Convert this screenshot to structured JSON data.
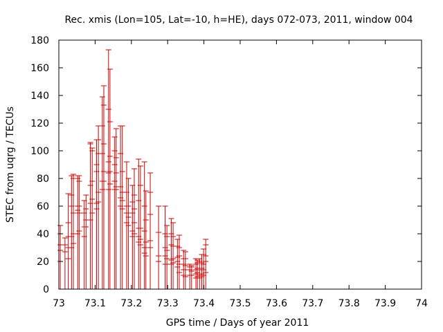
{
  "chart_data": {
    "type": "line",
    "title": "Rec. xmis (Lon=105, Lat=-10, h=HE), days 072-073, 2011, window 004",
    "xlabel": "GPS time / Days of year 2011",
    "ylabel": "STEC from uqrg / TECUs",
    "xlim": [
      73,
      74
    ],
    "ylim": [
      0,
      180
    ],
    "xticks": [
      "73",
      "73.1",
      "73.2",
      "73.3",
      "73.4",
      "73.5",
      "73.6",
      "73.7",
      "73.8",
      "73.9",
      "74"
    ],
    "yticks": [
      "0",
      "20",
      "40",
      "60",
      "80",
      "100",
      "120",
      "140",
      "160",
      "180"
    ],
    "grid": false,
    "colors": {
      "series": "#cc0000",
      "axes": "#000000"
    },
    "series": [
      {
        "style": "vertical-lines-with-ticks",
        "points": [
          {
            "x": 73.004,
            "y": 46,
            "ticks": [
              20,
              28,
              32,
              40,
              46
            ]
          },
          {
            "x": 73.017,
            "y": 37,
            "ticks": [
              27,
              32,
              37
            ]
          },
          {
            "x": 73.026,
            "y": 69,
            "ticks": [
              22,
              30,
              38,
              48,
              69
            ]
          },
          {
            "x": 73.035,
            "y": 82,
            "ticks": [
              30,
              38,
              60,
              68,
              82
            ]
          },
          {
            "x": 73.04,
            "y": 83,
            "ticks": [
              33,
              40,
              55,
              80,
              83
            ]
          },
          {
            "x": 73.052,
            "y": 82,
            "ticks": [
              40,
              57,
              60,
              80,
              82
            ]
          },
          {
            "x": 73.056,
            "y": 82,
            "ticks": [
              42,
              55,
              60,
              78,
              82
            ]
          },
          {
            "x": 73.07,
            "y": 64,
            "ticks": [
              38,
              45,
              55,
              64
            ]
          },
          {
            "x": 73.075,
            "y": 68,
            "ticks": [
              45,
              50,
              58,
              68
            ]
          },
          {
            "x": 73.087,
            "y": 106,
            "ticks": [
              50,
              62,
              75,
              105,
              106
            ]
          },
          {
            "x": 73.092,
            "y": 102,
            "ticks": [
              55,
              65,
              78,
              100,
              102
            ]
          },
          {
            "x": 73.104,
            "y": 108,
            "ticks": [
              58,
              62,
              85,
              90,
              108
            ]
          },
          {
            "x": 73.109,
            "y": 118,
            "ticks": [
              63,
              70,
              98,
              108,
              118
            ]
          },
          {
            "x": 73.12,
            "y": 139,
            "ticks": [
              72,
              78,
              98,
              118,
              139
            ]
          },
          {
            "x": 73.124,
            "y": 147,
            "ticks": [
              78,
              85,
              105,
              133,
              147
            ]
          },
          {
            "x": 73.137,
            "y": 173,
            "ticks": [
              72,
              84,
              92,
              130,
              173
            ]
          },
          {
            "x": 73.141,
            "y": 159,
            "ticks": [
              76,
              85,
              96,
              121,
              159
            ]
          },
          {
            "x": 73.154,
            "y": 110,
            "ticks": [
              72,
              78,
              90,
              100,
              110
            ]
          },
          {
            "x": 73.158,
            "y": 116,
            "ticks": [
              72,
              74,
              84,
              95,
              116
            ]
          },
          {
            "x": 73.17,
            "y": 118,
            "ticks": [
              60,
              66,
              74,
              98,
              118
            ]
          },
          {
            "x": 73.175,
            "y": 118,
            "ticks": [
              58,
              64,
              70,
              85,
              118
            ]
          },
          {
            "x": 73.187,
            "y": 92,
            "ticks": [
              48,
              55,
              60,
              70,
              92
            ]
          },
          {
            "x": 73.192,
            "y": 80,
            "ticks": [
              46,
              52,
              60,
              80
            ]
          },
          {
            "x": 73.203,
            "y": 75,
            "ticks": [
              38,
              42,
              55,
              63,
              75
            ]
          },
          {
            "x": 73.208,
            "y": 87,
            "ticks": [
              40,
              48,
              58,
              68,
              87
            ]
          },
          {
            "x": 73.22,
            "y": 94,
            "ticks": [
              34,
              38,
              44,
              64,
              94
            ]
          },
          {
            "x": 73.225,
            "y": 89,
            "ticks": [
              32,
              36,
              44,
              75,
              89
            ]
          },
          {
            "x": 73.236,
            "y": 92,
            "ticks": [
              26,
              30,
              42,
              60,
              92
            ]
          },
          {
            "x": 73.24,
            "y": 71,
            "ticks": [
              24,
              34,
              50,
              71
            ]
          },
          {
            "x": 73.252,
            "y": 84,
            "ticks": [
              30,
              35,
              54,
              70,
              84
            ]
          },
          {
            "x": 73.275,
            "y": 60,
            "ticks": [
              20,
              24,
              41,
              60
            ]
          },
          {
            "x": 73.293,
            "y": 60,
            "ticks": [
              18,
              24,
              30,
              40,
              60
            ]
          },
          {
            "x": 73.298,
            "y": 46,
            "ticks": [
              18,
              22,
              28,
              38,
              46
            ]
          },
          {
            "x": 73.31,
            "y": 51,
            "ticks": [
              18,
              21,
              32,
              40,
              51
            ]
          },
          {
            "x": 73.315,
            "y": 48,
            "ticks": [
              19,
              22,
              31,
              38,
              48
            ]
          },
          {
            "x": 73.327,
            "y": 36,
            "ticks": [
              16,
              20,
              23,
              31,
              36
            ]
          },
          {
            "x": 73.332,
            "y": 39,
            "ticks": [
              12,
              18,
              24,
              30,
              39
            ]
          },
          {
            "x": 73.344,
            "y": 28,
            "ticks": [
              10,
              14,
              18,
              22,
              28
            ]
          },
          {
            "x": 73.349,
            "y": 27,
            "ticks": [
              9,
              14,
              17,
              22,
              27
            ]
          },
          {
            "x": 73.361,
            "y": 18,
            "ticks": [
              10,
              14,
              16,
              18
            ]
          },
          {
            "x": 73.366,
            "y": 17,
            "ticks": [
              10,
              13,
              16,
              17
            ]
          },
          {
            "x": 73.378,
            "y": 22,
            "ticks": [
              8,
              11,
              14,
              18,
              22
            ]
          },
          {
            "x": 73.382,
            "y": 21,
            "ticks": [
              9,
              12,
              15,
              19,
              21
            ]
          },
          {
            "x": 73.388,
            "y": 22,
            "ticks": [
              8,
              10,
              14,
              20,
              22
            ]
          },
          {
            "x": 73.394,
            "y": 25,
            "ticks": [
              9,
              11,
              15,
              19,
              25
            ]
          },
          {
            "x": 73.399,
            "y": 29,
            "ticks": [
              10,
              14,
              18,
              25,
              29
            ]
          },
          {
            "x": 73.405,
            "y": 36,
            "ticks": [
              12,
              20,
              24,
              32,
              36
            ]
          }
        ]
      }
    ]
  }
}
